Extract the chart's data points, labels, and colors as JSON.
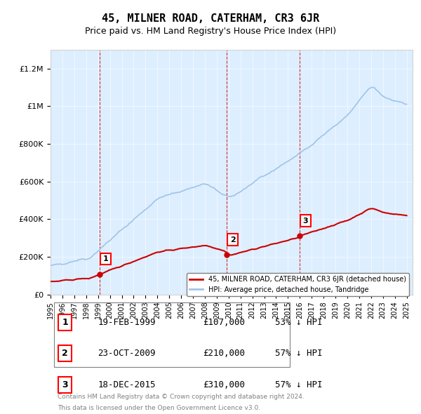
{
  "title": "45, MILNER ROAD, CATERHAM, CR3 6JR",
  "subtitle": "Price paid vs. HM Land Registry's House Price Index (HPI)",
  "legend_line1": "45, MILNER ROAD, CATERHAM, CR3 6JR (detached house)",
  "legend_line2": "HPI: Average price, detached house, Tandridge",
  "footer1": "Contains HM Land Registry data © Crown copyright and database right 2024.",
  "footer2": "This data is licensed under the Open Government Licence v3.0.",
  "transactions": [
    {
      "num": 1,
      "date": "19-FEB-1999",
      "price": 107000,
      "pct": "53% ↓ HPI",
      "year": 1999.12
    },
    {
      "num": 2,
      "date": "23-OCT-2009",
      "price": 210000,
      "pct": "57% ↓ HPI",
      "year": 2009.81
    },
    {
      "num": 3,
      "date": "18-DEC-2015",
      "price": 310000,
      "pct": "57% ↓ HPI",
      "year": 2015.96
    }
  ],
  "hpi_color": "#a0c4e8",
  "price_color": "#cc0000",
  "dashed_color": "#cc0000",
  "bg_color": "#ddeeff",
  "plot_bg": "#ddeeff",
  "ylim": [
    0,
    1300000
  ],
  "xlim_start": 1995.0,
  "xlim_end": 2025.5,
  "yticks": [
    0,
    200000,
    400000,
    600000,
    800000,
    1000000,
    1200000
  ],
  "ytick_labels": [
    "£0",
    "£200K",
    "£400K",
    "£600K",
    "£800K",
    "£1M",
    "£1.2M"
  ]
}
